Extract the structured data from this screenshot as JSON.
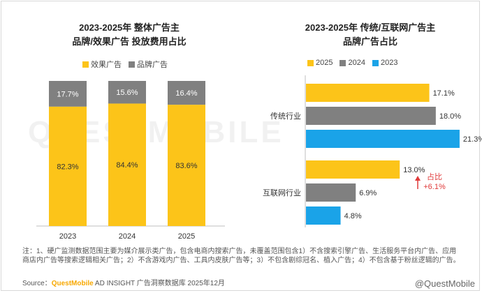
{
  "watermark": "QUESTMOBILE",
  "left_chart": {
    "title_line1": "2023-2025年 整体广告主",
    "title_line2": "品牌/效果广告 投放费用占比",
    "legend": [
      {
        "label": "效果广告",
        "color": "#fcc419"
      },
      {
        "label": "品牌广告",
        "color": "#808080"
      }
    ]
  },
  "right_chart": {
    "title_line1": "2023-2025年 传统/互联网广告主",
    "title_line2": "品牌广告占比",
    "legend": [
      {
        "label": "2025",
        "color": "#fcc419"
      },
      {
        "label": "2024",
        "color": "#808080"
      },
      {
        "label": "2023",
        "color": "#1aa3e8"
      }
    ],
    "annotation": {
      "line1": "占比",
      "line2": "+6.1%",
      "color": "#e03a3a"
    }
  },
  "chart_data": [
    {
      "type": "bar",
      "stacked": true,
      "percent": true,
      "categories": [
        "2023",
        "2024",
        "2025"
      ],
      "series": [
        {
          "name": "效果广告",
          "values": [
            82.3,
            84.4,
            83.6
          ],
          "labels": [
            "82.3%",
            "84.4%",
            "83.6%"
          ],
          "color": "#fcc419"
        },
        {
          "name": "品牌广告",
          "values": [
            17.7,
            15.6,
            16.4
          ],
          "labels": [
            "17.7%",
            "15.6%",
            "16.4%"
          ],
          "color": "#808080"
        }
      ],
      "ylim": [
        0,
        100
      ]
    },
    {
      "type": "bar",
      "orientation": "horizontal",
      "categories": [
        "传统行业",
        "互联网行业"
      ],
      "series": [
        {
          "name": "2025",
          "values": [
            17.1,
            13.0
          ],
          "labels": [
            "17.1%",
            "13.0%"
          ],
          "color": "#fcc419"
        },
        {
          "name": "2024",
          "values": [
            18.0,
            6.9
          ],
          "labels": [
            "18.0%",
            "6.9%"
          ],
          "color": "#808080"
        },
        {
          "name": "2023",
          "values": [
            21.3,
            4.8
          ],
          "labels": [
            "21.3%",
            "4.8%"
          ],
          "color": "#1aa3e8"
        }
      ],
      "xlim": [
        0,
        25
      ]
    }
  ],
  "note": "注：1、硬广监测数据范围主要为媒介展示类广告，包含电商内搜索广告，未覆盖范围包含1）不含搜索引擎广告、生活服务平台内广告、应用商店内广告等搜索逻辑相关广告；2）不含游戏内广告、工具内皮肤广告等；3）不包含剧综冠名、植入广告；4）不包含基于粉丝逻辑的广告。",
  "source": {
    "prefix": "Source：",
    "brand": "QuestMobile",
    "suffix": " AD INSIGHT 广告洞察数据库 2025年12月"
  },
  "footer_brand": "@QuestMobile"
}
